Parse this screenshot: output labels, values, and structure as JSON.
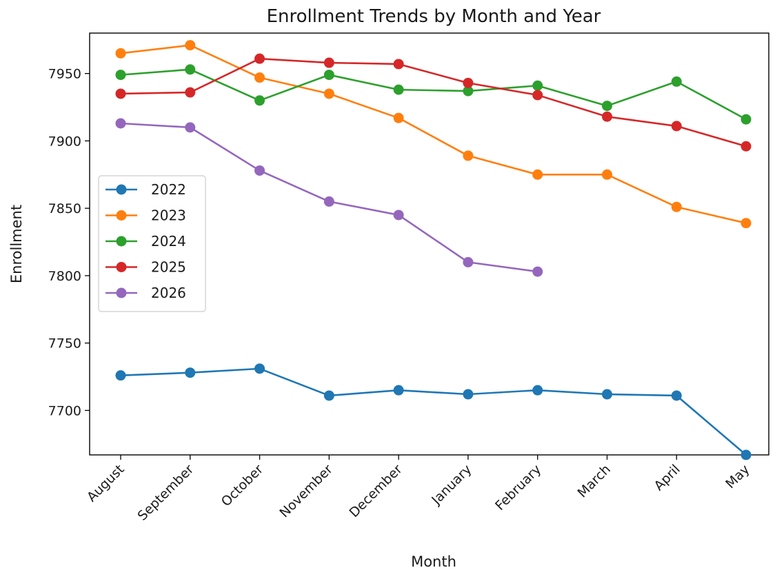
{
  "chart_data": {
    "type": "line",
    "title": "Enrollment Trends by Month and Year",
    "xlabel": "Month",
    "ylabel": "Enrollment",
    "categories": [
      "August",
      "September",
      "October",
      "November",
      "December",
      "January",
      "February",
      "March",
      "April",
      "May"
    ],
    "ylim": [
      7667,
      7980
    ],
    "yticks": [
      7700,
      7750,
      7800,
      7850,
      7900,
      7950
    ],
    "grid": false,
    "legend_position": "center-left",
    "marker": "circle",
    "series": [
      {
        "name": "2022",
        "color": "#1f77b4",
        "values": [
          7726,
          7728,
          7731,
          7711,
          7715,
          7712,
          7715,
          7712,
          7711,
          7667
        ]
      },
      {
        "name": "2023",
        "color": "#ff7f0e",
        "values": [
          7965,
          7971,
          7947,
          7935,
          7917,
          7889,
          7875,
          7875,
          7851,
          7839
        ]
      },
      {
        "name": "2024",
        "color": "#2ca02c",
        "values": [
          7949,
          7953,
          7930,
          7949,
          7938,
          7937,
          7941,
          7926,
          7944,
          7916
        ]
      },
      {
        "name": "2025",
        "color": "#d62728",
        "values": [
          7935,
          7936,
          7961,
          7958,
          7957,
          7943,
          7934,
          7918,
          7911,
          7896
        ]
      },
      {
        "name": "2026",
        "color": "#9467bd",
        "values": [
          7913,
          7910,
          7878,
          7855,
          7845,
          7810,
          7803,
          null,
          null,
          null
        ]
      }
    ]
  }
}
